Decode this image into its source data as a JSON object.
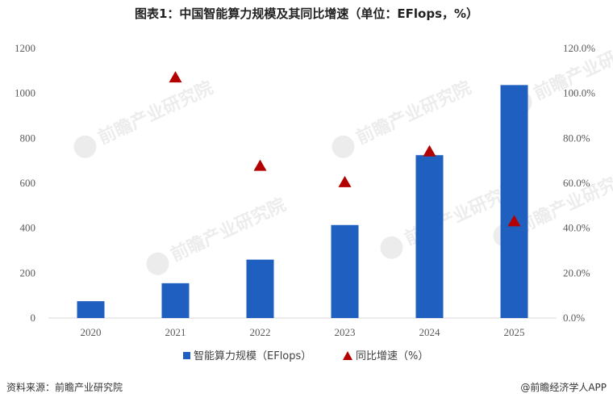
{
  "title": "图表1：中国智能算力规模及其同比增速（单位：EFlops，%）",
  "source": "资料来源：前瞻产业研究院",
  "brand": "@前瞻经济学人APP",
  "watermark_text": "前瞻产业研究院",
  "chart_data": {
    "type": "bar",
    "categories": [
      "2020",
      "2021",
      "2022",
      "2023",
      "2024",
      "2025"
    ],
    "series": [
      {
        "name": "智能算力规模（EFlops）",
        "kind": "bar",
        "axis": "left",
        "color": "#1f5fbf",
        "values": [
          75,
          155,
          260,
          414,
          725,
          1037
        ]
      },
      {
        "name": "同比增速（%）",
        "kind": "scatter",
        "axis": "right",
        "marker": "triangle",
        "color": "#b30000",
        "values": [
          null,
          107,
          67.7,
          60.4,
          74.1,
          43.0
        ]
      }
    ],
    "y_left": {
      "min": 0,
      "max": 1200,
      "ticks": [
        0,
        200,
        400,
        600,
        800,
        1000,
        1200
      ],
      "tick_labels": [
        "0",
        "200",
        "400",
        "600",
        "800",
        "1000",
        "1200"
      ]
    },
    "y_right": {
      "min": 0,
      "max": 120,
      "ticks": [
        0,
        20,
        40,
        60,
        80,
        100,
        120
      ],
      "tick_labels": [
        "0.0%",
        "20.0%",
        "40.0%",
        "60.0%",
        "80.0%",
        "100.0%",
        "120.0%"
      ]
    },
    "grid": false,
    "legend_position": "bottom"
  }
}
